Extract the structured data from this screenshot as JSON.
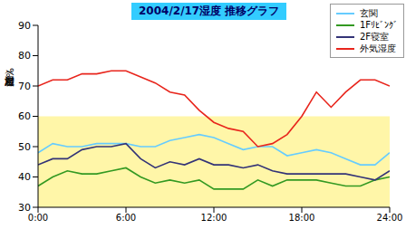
{
  "chart_data": {
    "type": "line",
    "title": "2004/2/17湿度 推移グラフ",
    "y_label": "相対湿度（%）",
    "x": [
      0,
      1,
      2,
      3,
      4,
      5,
      6,
      7,
      8,
      9,
      10,
      11,
      12,
      13,
      14,
      15,
      16,
      17,
      18,
      19,
      20,
      21,
      22,
      23,
      24
    ],
    "xlim": [
      0,
      24
    ],
    "xticks": [
      {
        "value": 0,
        "label": "0:00"
      },
      {
        "value": 6,
        "label": "6:00"
      },
      {
        "value": 12,
        "label": "12:00"
      },
      {
        "value": 18,
        "label": "18:00"
      },
      {
        "value": 24,
        "label": "24:00"
      }
    ],
    "ylim": [
      30,
      90
    ],
    "yticks": [
      30,
      40,
      50,
      60,
      70,
      80,
      90
    ],
    "comfort_band": [
      30,
      60
    ],
    "grid": false,
    "legend": "upper right",
    "series": [
      {
        "name": "玄関",
        "color": "#66ccff",
        "values": [
          48,
          51,
          50,
          50,
          51,
          51,
          51,
          50,
          50,
          52,
          53,
          54,
          53,
          51,
          49,
          50,
          50,
          47,
          48,
          49,
          48,
          46,
          44,
          44,
          48
        ]
      },
      {
        "name": "1Fﾘﾋﾞﾝｸﾞ",
        "color": "#339922",
        "values": [
          37,
          40,
          42,
          41,
          41,
          42,
          43,
          40,
          38,
          39,
          38,
          39,
          36,
          36,
          36,
          39,
          37,
          39,
          39,
          39,
          38,
          37,
          37,
          39,
          40
        ]
      },
      {
        "name": "2F寝室",
        "color": "#333377",
        "values": [
          44,
          46,
          46,
          49,
          50,
          50,
          51,
          46,
          43,
          45,
          44,
          46,
          44,
          44,
          43,
          44,
          42,
          41,
          41,
          41,
          41,
          41,
          40,
          39,
          42
        ]
      },
      {
        "name": "外気湿度",
        "color": "#e8251c",
        "values": [
          70,
          72,
          72,
          74,
          74,
          75,
          75,
          73,
          71,
          68,
          67,
          62,
          58,
          56,
          55,
          50,
          51,
          54,
          60,
          68,
          63,
          68,
          72,
          72,
          70
        ]
      }
    ]
  }
}
